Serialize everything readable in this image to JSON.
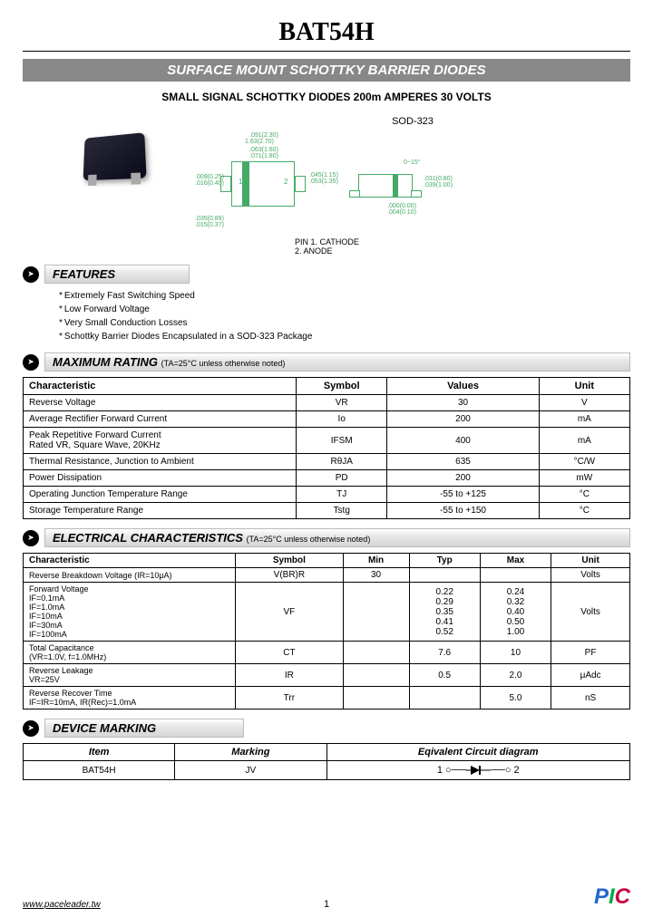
{
  "title": "BAT54H",
  "subtitle": "SURFACE MOUNT SCHOTTKY BARRIER DIODES",
  "description": "SMALL SIGNAL SCHOTTKY DIODES 200m AMPERES 30 VOLTS",
  "package_label": "SOD-323",
  "pin_labels": "PIN 1. CATHODE\n2. ANODE",
  "features": {
    "heading": "FEATURES",
    "items": [
      "Extremely Fast Switching Speed",
      "Low Forward Voltage",
      "Very Small Conduction Losses",
      "Schottky Barrier Diodes Encapsulated in a SOD-323 Package"
    ]
  },
  "max_rating": {
    "heading": "MAXIMUM RATING",
    "note": "(TA=25°C unless otherwise noted)",
    "headers": [
      "Characteristic",
      "Symbol",
      "Values",
      "Unit"
    ],
    "rows": [
      [
        "Reverse Voltage",
        "VR",
        "30",
        "V"
      ],
      [
        "Average Rectifier Forward Current",
        "Io",
        "200",
        "mA"
      ],
      [
        "Peak Repetitive Forward Current\nRated VR, Square Wave, 20KHz",
        "IFSM",
        "400",
        "mA"
      ],
      [
        "Thermal Resistance, Junction to Ambient",
        "RθJA",
        "635",
        "°C/W"
      ],
      [
        "Power Dissipation",
        "PD",
        "200",
        "mW"
      ],
      [
        "Operating Junction Temperature Range",
        "TJ",
        "-55 to +125",
        "°C"
      ],
      [
        "Storage Temperature Range",
        "Tstg",
        "-55 to +150",
        "°C"
      ]
    ]
  },
  "elec_char": {
    "heading": "ELECTRICAL CHARACTERISTICS",
    "note": "(TA=25°C unless otherwise noted)",
    "headers": [
      "Characteristic",
      "Symbol",
      "Min",
      "Typ",
      "Max",
      "Unit"
    ],
    "rows": [
      {
        "char": "Reverse Breakdown Voltage (IR=10μA)",
        "symbol": "V(BR)R",
        "min": "30",
        "typ": "",
        "max": "",
        "unit": "Volts"
      },
      {
        "char": "Forward Voltage",
        "sub": [
          "IF=0.1mA",
          "IF=1.0mA",
          "IF=10mA",
          "IF=30mA",
          "IF=100mA"
        ],
        "symbol": "VF",
        "min": "",
        "typ": "0.22\n0.29\n0.35\n0.41\n0.52",
        "max": "0.24\n0.32\n0.40\n0.50\n1.00",
        "unit": "Volts"
      },
      {
        "char": "Total Capacitance\n(VR=1.0V, f=1.0MHz)",
        "symbol": "CT",
        "min": "",
        "typ": "7.6",
        "max": "10",
        "unit": "PF"
      },
      {
        "char": "Reverse Leakage\nVR=25V",
        "symbol": "IR",
        "min": "",
        "typ": "0.5",
        "max": "2.0",
        "unit": "μAdc"
      },
      {
        "char": "Reverse Recover Time\nIF=IR=10mA, IR(Rec)=1.0mA",
        "symbol": "Trr",
        "min": "",
        "typ": "",
        "max": "5.0",
        "unit": "nS"
      }
    ]
  },
  "device_marking": {
    "heading": "DEVICE MARKING",
    "headers": [
      "Item",
      "Marking",
      "Eqivalent Circuit diagram"
    ],
    "row": [
      "BAT54H",
      "JV",
      "1 ○—▷|—○ 2"
    ]
  },
  "footer": {
    "url": "www.paceleader.tw",
    "page": "1",
    "logo": "PIC"
  },
  "dims": {
    "d1": ".091(2.30)",
    "d2": "1.63(2.70)",
    "d3": ".063(1.60)",
    "d4": ".071(1.80)",
    "d5": ".009(0.25)",
    "d6": ".016(0.40)",
    "d7": ".045(1.15)",
    "d8": ".053(1.35)",
    "d9": ".035(0.89)",
    "d10": ".015(0.37)",
    "d11": ".000(0.00)",
    "d12": ".004(0.10)",
    "d13": "0~15°",
    "d14": ".031(0.80)",
    "d15": ".039(1.00)"
  }
}
